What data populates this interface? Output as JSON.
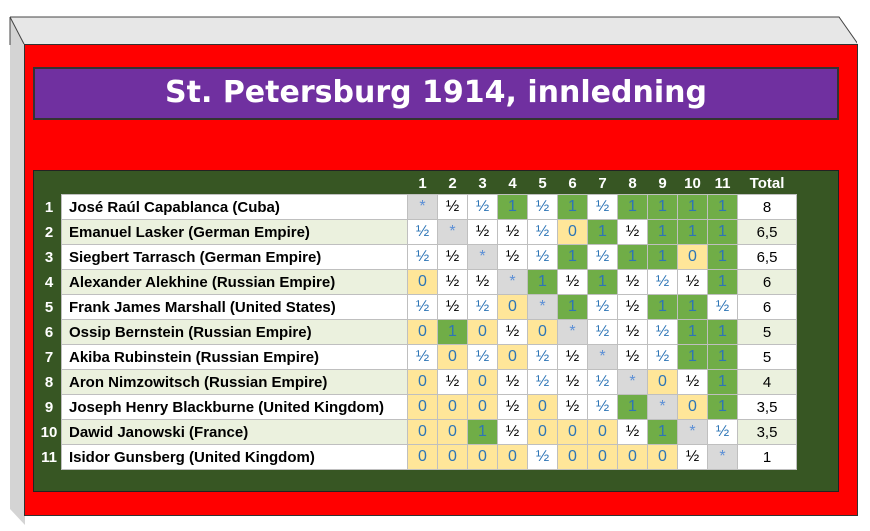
{
  "title": "St. Petersburg 1914, innledning",
  "headers": [
    "1",
    "2",
    "3",
    "4",
    "5",
    "6",
    "7",
    "8",
    "9",
    "10",
    "11",
    "Total"
  ],
  "players": [
    {
      "rank": "1",
      "name": "José Raúl Capablanca (Cuba)",
      "total": "8",
      "cells": [
        [
          "*",
          "s"
        ],
        [
          "½",
          "d"
        ],
        [
          "½",
          "d2"
        ],
        [
          "1",
          "w"
        ],
        [
          "½",
          "d2"
        ],
        [
          "1",
          "w"
        ],
        [
          "½",
          "d2"
        ],
        [
          "1",
          "w"
        ],
        [
          "1",
          "w"
        ],
        [
          "1",
          "w"
        ],
        [
          "1",
          "w"
        ]
      ]
    },
    {
      "rank": "2",
      "name": "Emanuel Lasker (German Empire)",
      "total": "6,5",
      "cells": [
        [
          "½",
          "d2"
        ],
        [
          "*",
          "s"
        ],
        [
          "½",
          "d"
        ],
        [
          "½",
          "d"
        ],
        [
          "½",
          "d2"
        ],
        [
          "0",
          "l"
        ],
        [
          "1",
          "w"
        ],
        [
          "½",
          "d"
        ],
        [
          "1",
          "w"
        ],
        [
          "1",
          "w"
        ],
        [
          "1",
          "w"
        ]
      ]
    },
    {
      "rank": "3",
      "name": "Siegbert Tarrasch (German Empire)",
      "total": "6,5",
      "cells": [
        [
          "½",
          "d2"
        ],
        [
          "½",
          "d"
        ],
        [
          "*",
          "s"
        ],
        [
          "½",
          "d"
        ],
        [
          "½",
          "d2"
        ],
        [
          "1",
          "w"
        ],
        [
          "½",
          "d2"
        ],
        [
          "1",
          "w"
        ],
        [
          "1",
          "w"
        ],
        [
          "0",
          "l"
        ],
        [
          "1",
          "w"
        ]
      ]
    },
    {
      "rank": "4",
      "name": "Alexander Alekhine (Russian Empire)",
      "total": "6",
      "cells": [
        [
          "0",
          "l"
        ],
        [
          "½",
          "d"
        ],
        [
          "½",
          "d"
        ],
        [
          "*",
          "s"
        ],
        [
          "1",
          "w"
        ],
        [
          "½",
          "d"
        ],
        [
          "1",
          "w"
        ],
        [
          "½",
          "d"
        ],
        [
          "½",
          "d2"
        ],
        [
          "½",
          "d"
        ],
        [
          "1",
          "w"
        ]
      ]
    },
    {
      "rank": "5",
      "name": "Frank James Marshall (United States)",
      "total": "6",
      "cells": [
        [
          "½",
          "d2"
        ],
        [
          "½",
          "d"
        ],
        [
          "½",
          "d2"
        ],
        [
          "0",
          "l"
        ],
        [
          "*",
          "s"
        ],
        [
          "1",
          "w"
        ],
        [
          "½",
          "d2"
        ],
        [
          "½",
          "d"
        ],
        [
          "1",
          "w"
        ],
        [
          "1",
          "w"
        ],
        [
          "½",
          "d2"
        ]
      ]
    },
    {
      "rank": "6",
      "name": "Ossip Bernstein (Russian Empire)",
      "total": "5",
      "cells": [
        [
          "0",
          "l"
        ],
        [
          "1",
          "w"
        ],
        [
          "0",
          "l"
        ],
        [
          "½",
          "d"
        ],
        [
          "0",
          "l"
        ],
        [
          "*",
          "s"
        ],
        [
          "½",
          "d2"
        ],
        [
          "½",
          "d"
        ],
        [
          "½",
          "d2"
        ],
        [
          "1",
          "w"
        ],
        [
          "1",
          "w"
        ]
      ]
    },
    {
      "rank": "7",
      "name": "Akiba Rubinstein (Russian Empire)",
      "total": "5",
      "cells": [
        [
          "½",
          "d2"
        ],
        [
          "0",
          "l"
        ],
        [
          "½",
          "d2"
        ],
        [
          "0",
          "l"
        ],
        [
          "½",
          "d2"
        ],
        [
          "½",
          "d"
        ],
        [
          "*",
          "s"
        ],
        [
          "½",
          "d"
        ],
        [
          "½",
          "d2"
        ],
        [
          "1",
          "w"
        ],
        [
          "1",
          "w"
        ]
      ]
    },
    {
      "rank": "8",
      "name": "Aron Nimzowitsch (Russian Empire)",
      "total": "4",
      "cells": [
        [
          "0",
          "l"
        ],
        [
          "½",
          "d"
        ],
        [
          "0",
          "l"
        ],
        [
          "½",
          "d"
        ],
        [
          "½",
          "d2"
        ],
        [
          "½",
          "d"
        ],
        [
          "½",
          "d2"
        ],
        [
          "*",
          "s"
        ],
        [
          "0",
          "l"
        ],
        [
          "½",
          "d"
        ],
        [
          "1",
          "w"
        ]
      ]
    },
    {
      "rank": "9",
      "name": "Joseph Henry Blackburne (United Kingdom)",
      "total": "3,5",
      "cells": [
        [
          "0",
          "l"
        ],
        [
          "0",
          "l"
        ],
        [
          "0",
          "l"
        ],
        [
          "½",
          "d"
        ],
        [
          "0",
          "l"
        ],
        [
          "½",
          "d"
        ],
        [
          "½",
          "d2"
        ],
        [
          "1",
          "w"
        ],
        [
          "*",
          "s"
        ],
        [
          "0",
          "l"
        ],
        [
          "1",
          "w"
        ]
      ]
    },
    {
      "rank": "10",
      "name": "Dawid Janowski (France)",
      "total": "3,5",
      "cells": [
        [
          "0",
          "l"
        ],
        [
          "0",
          "l"
        ],
        [
          "1",
          "w"
        ],
        [
          "½",
          "d"
        ],
        [
          "0",
          "l"
        ],
        [
          "0",
          "l"
        ],
        [
          "0",
          "l"
        ],
        [
          "½",
          "d"
        ],
        [
          "1",
          "w"
        ],
        [
          "*",
          "s"
        ],
        [
          "½",
          "d2"
        ]
      ]
    },
    {
      "rank": "11",
      "name": "Isidor Gunsberg (United Kingdom)",
      "total": "1",
      "cells": [
        [
          "0",
          "l"
        ],
        [
          "0",
          "l"
        ],
        [
          "0",
          "l"
        ],
        [
          "0",
          "l"
        ],
        [
          "½",
          "d2"
        ],
        [
          "0",
          "l"
        ],
        [
          "0",
          "l"
        ],
        [
          "0",
          "l"
        ],
        [
          "0",
          "l"
        ],
        [
          "½",
          "d"
        ],
        [
          "*",
          "s"
        ]
      ]
    }
  ]
}
